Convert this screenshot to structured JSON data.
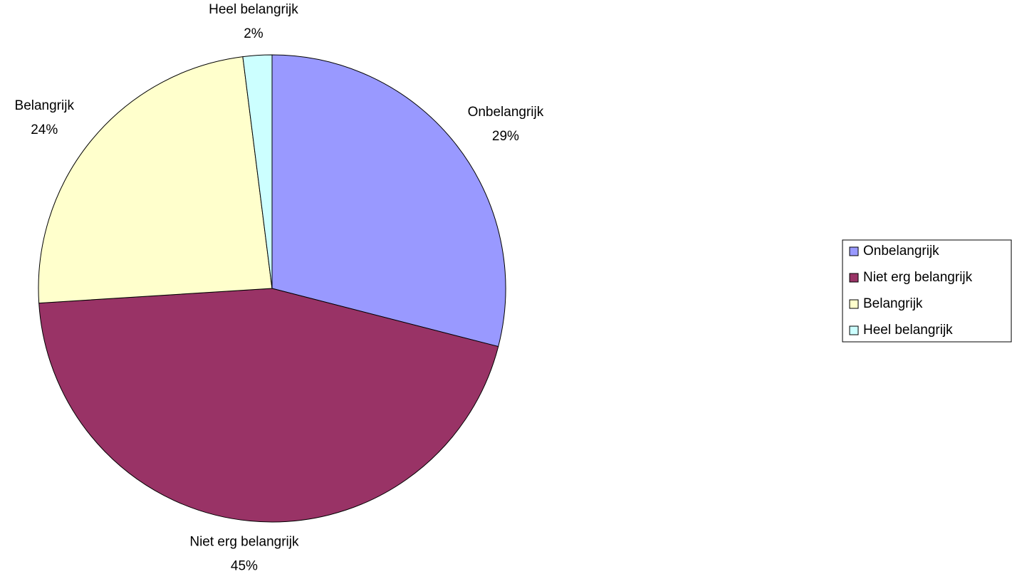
{
  "chart_data": {
    "type": "pie",
    "categories": [
      "Onbelangrijk",
      "Niet erg belangrijk",
      "Belangrijk",
      "Heel belangrijk"
    ],
    "values": [
      29,
      45,
      24,
      2
    ],
    "value_labels": [
      "29%",
      "45%",
      "24%",
      "2%"
    ],
    "colors": [
      "#9999ff",
      "#993366",
      "#ffffcc",
      "#ccffff"
    ],
    "legend": "right"
  }
}
